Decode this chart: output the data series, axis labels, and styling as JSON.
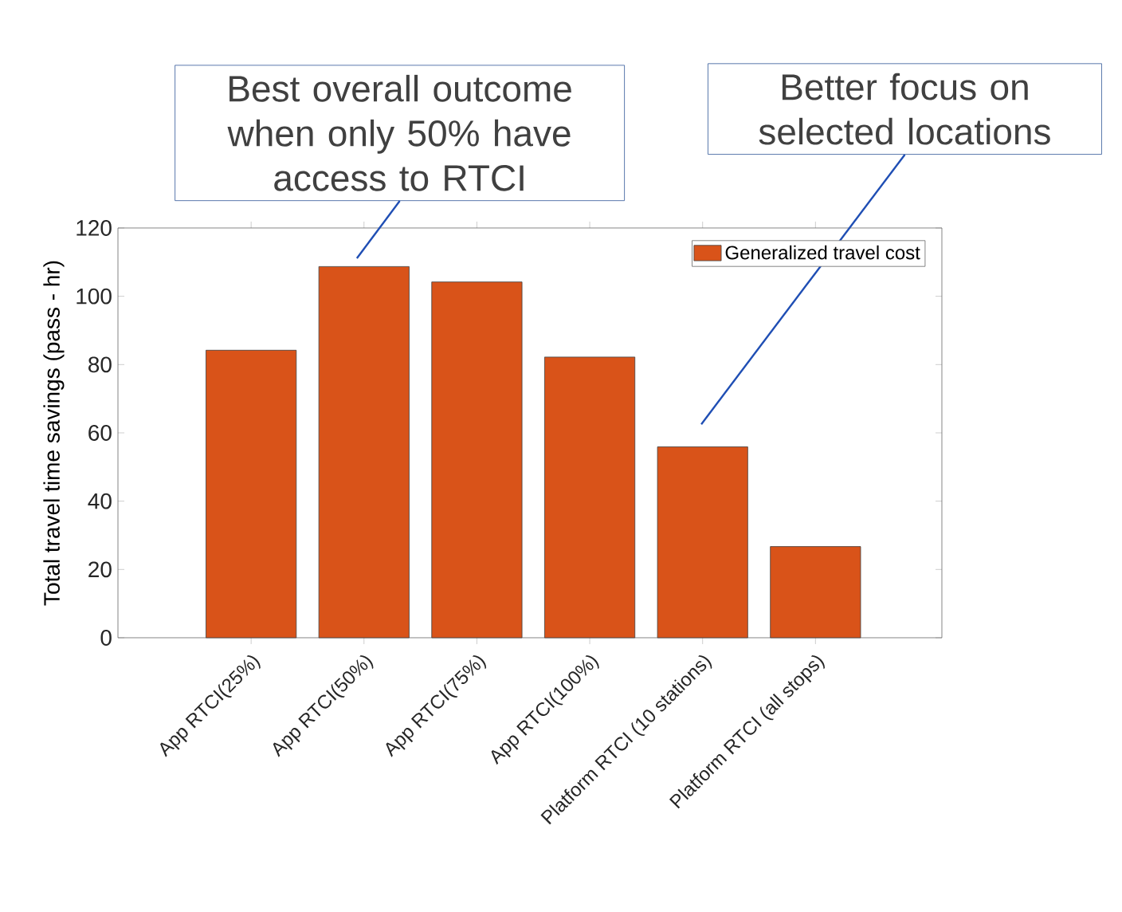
{
  "chart_data": {
    "type": "bar",
    "ylabel": "Total travel time savings (pass - hr)",
    "categories": [
      "App RTCI(25%)",
      "App RTCI(50%)",
      "App RTCI(75%)",
      "App RTCI(100%)",
      "Platform RTCI (10 stations)",
      "Platform RTCI (all stops)"
    ],
    "series": [
      {
        "name": "Generalized travel cost",
        "color": "#d95319",
        "values": [
          84.2,
          108.7,
          104.2,
          82.2,
          55.9,
          26.7
        ]
      }
    ],
    "ylim": [
      0,
      120
    ],
    "yticks": [
      0,
      20,
      40,
      60,
      80,
      100,
      120
    ],
    "legend": "top right",
    "annotations": [
      "Best overall outcome when only 50% have access to RTCI",
      "Better focus on selected locations"
    ]
  }
}
